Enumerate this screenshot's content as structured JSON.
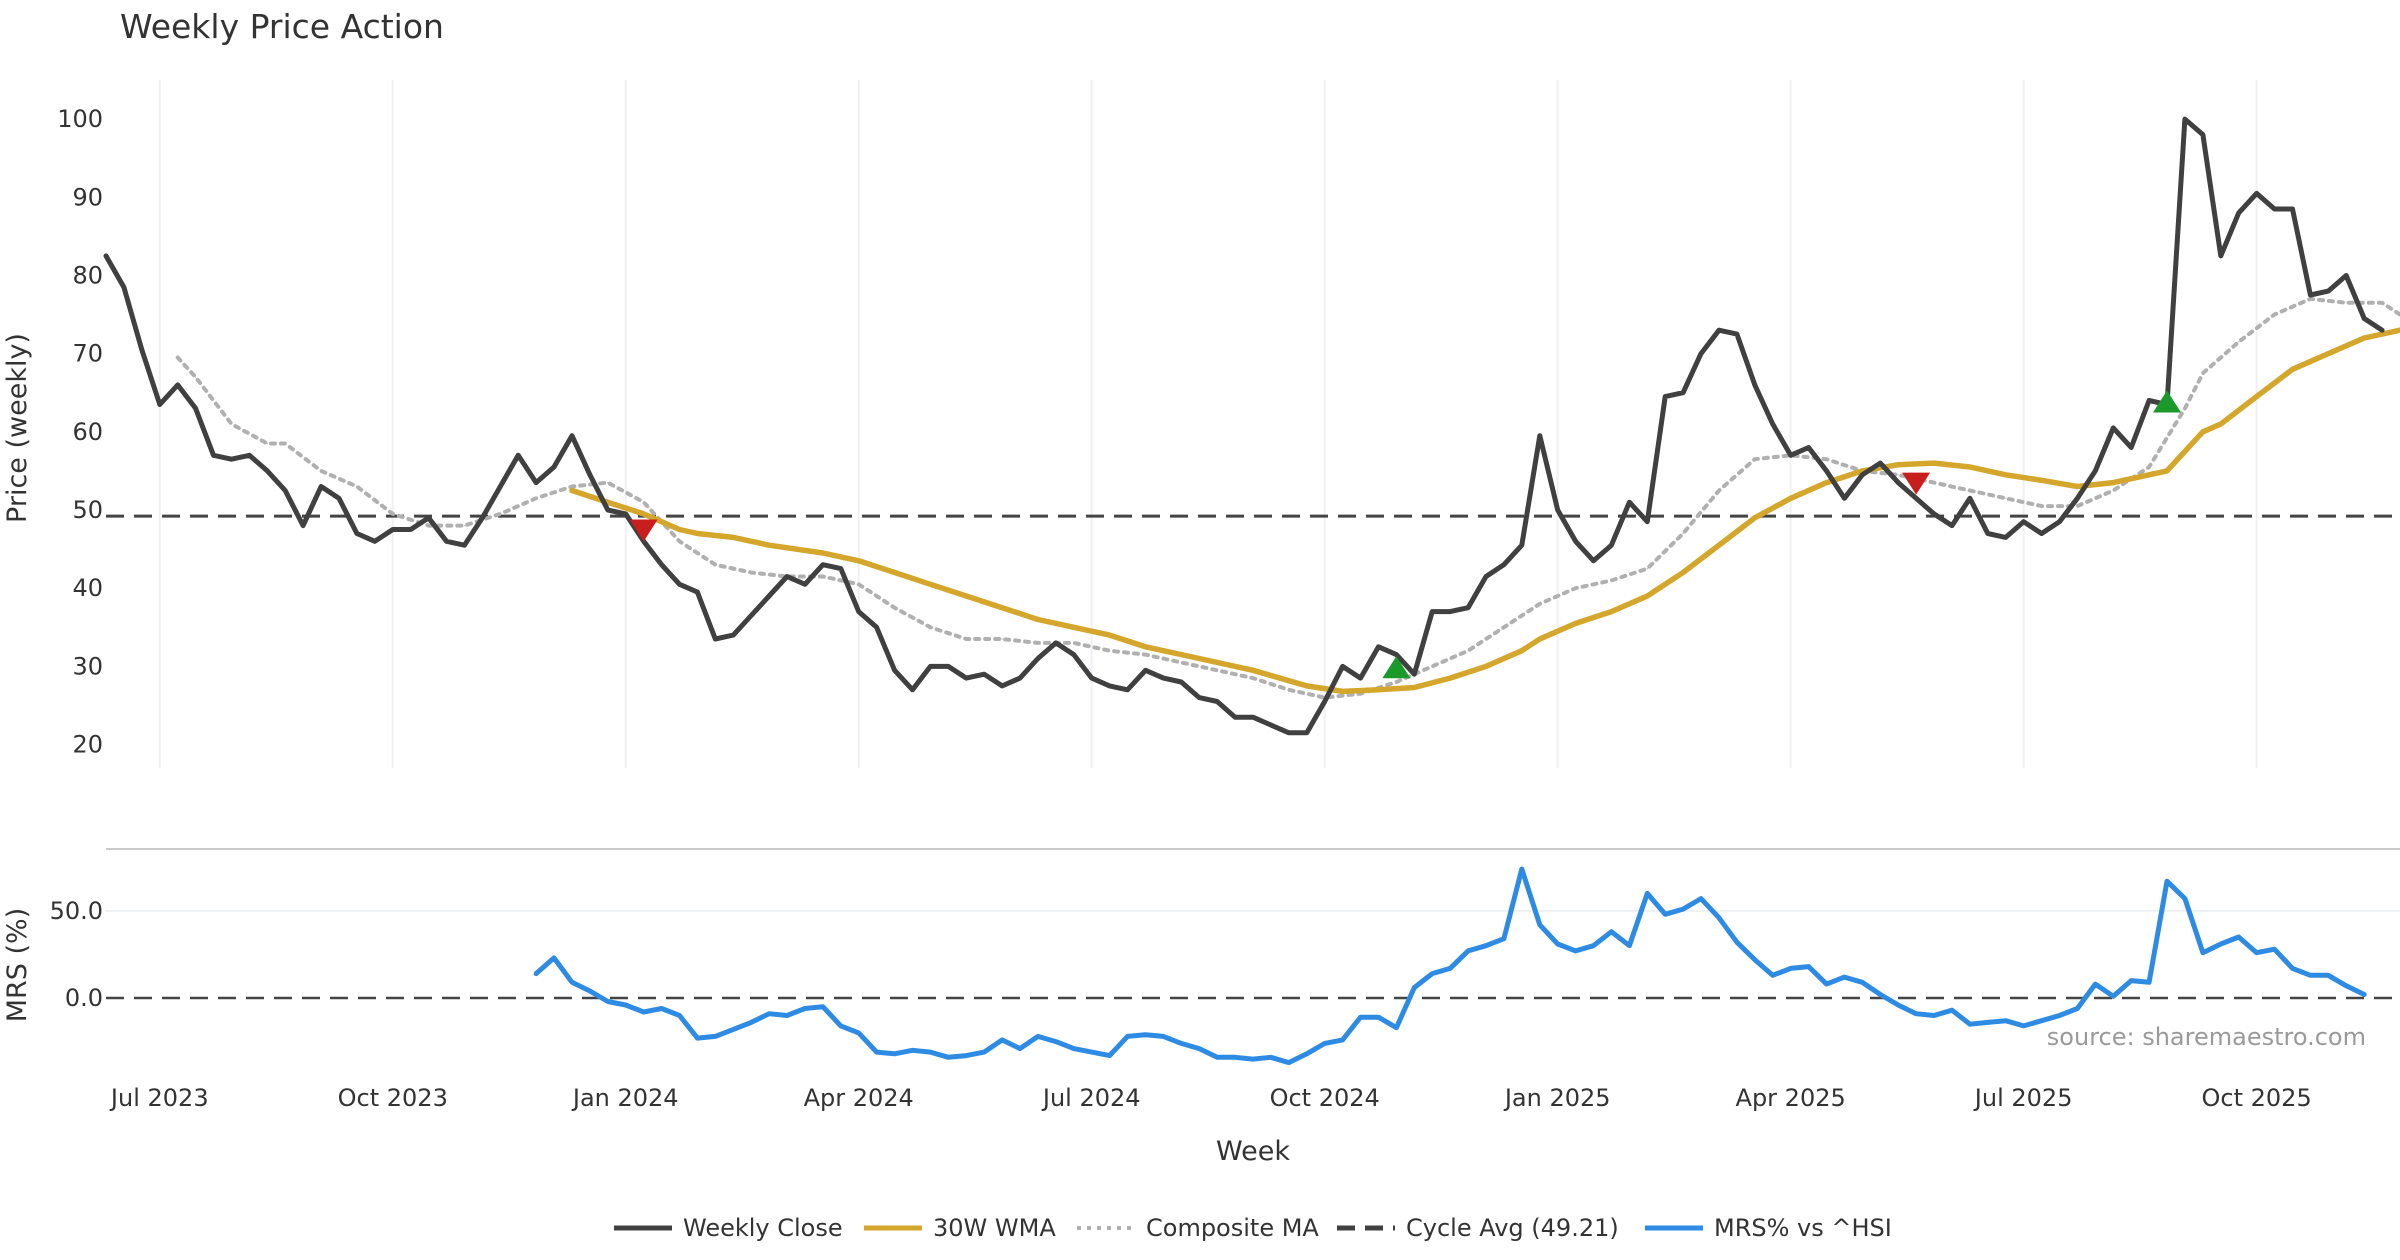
{
  "chart_data": {
    "type": "line",
    "title": "Weekly Price Action",
    "xlabel": "Week",
    "source": "source: sharemaestro.com",
    "x_ticks": [
      "Jul 2023",
      "Oct 2023",
      "Jan 2024",
      "Apr 2024",
      "Jul 2024",
      "Oct 2024",
      "Jan 2025",
      "Apr 2025",
      "Jul 2025",
      "Oct 2025"
    ],
    "price_panel": {
      "ylabel": "Price (weekly)",
      "ylim": [
        17,
        105
      ],
      "yticks": [
        "20",
        "30",
        "40",
        "50",
        "60",
        "70",
        "80",
        "90",
        "100"
      ],
      "cycle_avg": 49.21,
      "weekly_close": [
        [
          0,
          82.5
        ],
        [
          1,
          78.5
        ],
        [
          2,
          70.5
        ],
        [
          3,
          63.5
        ],
        [
          4,
          66
        ],
        [
          5,
          63
        ],
        [
          6,
          57
        ],
        [
          7,
          56.5
        ],
        [
          8,
          57
        ],
        [
          9,
          55
        ],
        [
          10,
          52.5
        ],
        [
          11,
          48
        ],
        [
          12,
          53
        ],
        [
          13,
          51.5
        ],
        [
          14,
          47
        ],
        [
          15,
          46
        ],
        [
          16,
          47.5
        ],
        [
          17,
          47.5
        ],
        [
          18,
          49
        ],
        [
          19,
          46
        ],
        [
          20,
          45.5
        ],
        [
          21,
          49
        ],
        [
          22,
          53
        ],
        [
          23,
          57
        ],
        [
          24,
          53.5
        ],
        [
          25,
          55.5
        ],
        [
          26,
          59.5
        ],
        [
          27,
          54.5
        ],
        [
          28,
          50
        ],
        [
          29,
          49.5
        ],
        [
          30,
          46
        ],
        [
          31,
          43
        ],
        [
          32,
          40.5
        ],
        [
          33,
          39.5
        ],
        [
          34,
          33.5
        ],
        [
          35,
          34
        ],
        [
          36,
          36.5
        ],
        [
          37,
          39
        ],
        [
          38,
          41.5
        ],
        [
          39,
          40.5
        ],
        [
          40,
          43
        ],
        [
          41,
          42.5
        ],
        [
          42,
          37
        ],
        [
          43,
          35
        ],
        [
          44,
          29.5
        ],
        [
          45,
          27
        ],
        [
          46,
          30
        ],
        [
          47,
          30
        ],
        [
          48,
          28.5
        ],
        [
          49,
          29
        ],
        [
          50,
          27.5
        ],
        [
          51,
          28.5
        ],
        [
          52,
          31
        ],
        [
          53,
          33
        ],
        [
          54,
          31.5
        ],
        [
          55,
          28.5
        ],
        [
          56,
          27.5
        ],
        [
          57,
          27
        ],
        [
          58,
          29.5
        ],
        [
          59,
          28.5
        ],
        [
          60,
          28
        ],
        [
          61,
          26
        ],
        [
          62,
          25.5
        ],
        [
          63,
          23.5
        ],
        [
          64,
          23.5
        ],
        [
          65,
          22.5
        ],
        [
          66,
          21.5
        ],
        [
          67,
          21.5
        ],
        [
          68,
          25.5
        ],
        [
          69,
          30
        ],
        [
          70,
          28.5
        ],
        [
          71,
          32.5
        ],
        [
          72,
          31.5
        ],
        [
          73,
          29
        ],
        [
          74,
          37
        ],
        [
          75,
          37
        ],
        [
          76,
          37.5
        ],
        [
          77,
          41.5
        ],
        [
          78,
          43
        ],
        [
          79,
          45.5
        ],
        [
          80,
          59.5
        ],
        [
          81,
          50
        ],
        [
          82,
          46
        ],
        [
          83,
          43.5
        ],
        [
          84,
          45.5
        ],
        [
          85,
          51
        ],
        [
          86,
          48.5
        ],
        [
          87,
          64.5
        ],
        [
          88,
          65
        ],
        [
          89,
          70
        ],
        [
          90,
          73
        ],
        [
          91,
          72.5
        ],
        [
          92,
          66
        ],
        [
          93,
          61
        ],
        [
          94,
          57
        ],
        [
          95,
          58
        ],
        [
          96,
          55
        ],
        [
          97,
          51.5
        ],
        [
          98,
          54.5
        ],
        [
          99,
          56
        ],
        [
          100,
          53.5
        ],
        [
          101,
          51.5
        ],
        [
          102,
          49.5
        ],
        [
          103,
          48
        ],
        [
          104,
          51.5
        ],
        [
          105,
          47
        ],
        [
          106,
          46.5
        ],
        [
          107,
          48.5
        ],
        [
          108,
          47
        ],
        [
          109,
          48.5
        ],
        [
          110,
          51.5
        ],
        [
          111,
          55
        ],
        [
          112,
          60.5
        ],
        [
          113,
          58
        ],
        [
          114,
          64
        ],
        [
          115,
          63.5
        ],
        [
          116,
          100
        ],
        [
          117,
          98
        ],
        [
          118,
          82.5
        ],
        [
          119,
          88
        ],
        [
          120,
          90.5
        ],
        [
          121,
          88.5
        ],
        [
          122,
          88.5
        ],
        [
          123,
          77.5
        ],
        [
          124,
          78
        ],
        [
          125,
          80
        ],
        [
          126,
          74.5
        ],
        [
          127,
          73
        ]
      ],
      "wma_30w": [
        [
          26,
          52.5
        ],
        [
          28,
          51
        ],
        [
          30,
          49.5
        ],
        [
          32,
          47.5
        ],
        [
          33,
          47
        ],
        [
          35,
          46.5
        ],
        [
          37,
          45.5
        ],
        [
          40,
          44.5
        ],
        [
          42,
          43.5
        ],
        [
          44,
          42
        ],
        [
          46,
          40.5
        ],
        [
          48,
          39
        ],
        [
          50,
          37.5
        ],
        [
          52,
          36
        ],
        [
          54,
          35
        ],
        [
          56,
          34
        ],
        [
          58,
          32.5
        ],
        [
          61,
          31
        ],
        [
          64,
          29.5
        ],
        [
          67,
          27.5
        ],
        [
          69,
          26.8
        ],
        [
          71,
          27
        ],
        [
          73,
          27.3
        ],
        [
          75,
          28.5
        ],
        [
          77,
          30
        ],
        [
          79,
          32
        ],
        [
          80,
          33.5
        ],
        [
          82,
          35.5
        ],
        [
          84,
          37
        ],
        [
          86,
          39
        ],
        [
          88,
          42
        ],
        [
          90,
          45.5
        ],
        [
          92,
          49
        ],
        [
          94,
          51.5
        ],
        [
          96,
          53.5
        ],
        [
          98,
          55
        ],
        [
          100,
          55.8
        ],
        [
          102,
          56
        ],
        [
          104,
          55.5
        ],
        [
          106,
          54.5
        ],
        [
          108,
          53.8
        ],
        [
          110,
          53
        ],
        [
          112,
          53.5
        ],
        [
          114,
          54.5
        ],
        [
          115,
          55
        ],
        [
          117,
          60
        ],
        [
          118,
          61
        ],
        [
          120,
          64.5
        ],
        [
          122,
          68
        ],
        [
          124,
          70
        ],
        [
          126,
          72
        ],
        [
          128,
          73
        ]
      ],
      "composite_ma": [
        [
          4,
          69.5
        ],
        [
          5,
          67
        ],
        [
          7,
          61
        ],
        [
          9,
          58.5
        ],
        [
          10,
          58.5
        ],
        [
          12,
          55
        ],
        [
          14,
          53
        ],
        [
          16,
          49.5
        ],
        [
          18,
          48
        ],
        [
          20,
          48
        ],
        [
          22,
          49.5
        ],
        [
          24,
          51.5
        ],
        [
          26,
          53
        ],
        [
          28,
          53.5
        ],
        [
          30,
          51
        ],
        [
          32,
          46
        ],
        [
          34,
          43
        ],
        [
          36,
          42
        ],
        [
          38,
          41.5
        ],
        [
          40,
          41.5
        ],
        [
          42,
          40.5
        ],
        [
          44,
          37.5
        ],
        [
          46,
          35
        ],
        [
          48,
          33.5
        ],
        [
          50,
          33.5
        ],
        [
          52,
          33
        ],
        [
          54,
          33
        ],
        [
          56,
          32
        ],
        [
          58,
          31.5
        ],
        [
          60,
          30.5
        ],
        [
          62,
          29.5
        ],
        [
          64,
          28.5
        ],
        [
          66,
          27
        ],
        [
          68,
          26
        ],
        [
          70,
          26.5
        ],
        [
          72,
          28
        ],
        [
          74,
          30
        ],
        [
          76,
          32
        ],
        [
          78,
          35
        ],
        [
          80,
          38
        ],
        [
          82,
          40
        ],
        [
          84,
          41
        ],
        [
          86,
          42.5
        ],
        [
          88,
          47
        ],
        [
          90,
          52.5
        ],
        [
          92,
          56.5
        ],
        [
          94,
          57
        ],
        [
          96,
          56.5
        ],
        [
          98,
          55
        ],
        [
          100,
          54.5
        ],
        [
          102,
          53.5
        ],
        [
          104,
          52.5
        ],
        [
          106,
          51.5
        ],
        [
          108,
          50.5
        ],
        [
          110,
          50.5
        ],
        [
          112,
          52.5
        ],
        [
          114,
          55.5
        ],
        [
          116,
          63
        ],
        [
          117,
          67.5
        ],
        [
          119,
          71.5
        ],
        [
          121,
          75
        ],
        [
          123,
          77
        ],
        [
          125,
          76.5
        ],
        [
          127,
          76.5
        ],
        [
          128,
          75
        ]
      ],
      "buy_signals": [
        [
          72,
          29.5
        ],
        [
          115,
          63.5
        ]
      ],
      "sell_signals": [
        [
          30,
          47.5
        ],
        [
          101,
          53.5
        ]
      ]
    },
    "mrs_panel": {
      "ylabel": "MRS (%)",
      "ylim": [
        -47,
        82
      ],
      "yticks": [
        "0.0",
        "50.0"
      ],
      "zero_line": 0,
      "mrs_pct": [
        [
          24,
          14
        ],
        [
          25,
          23
        ],
        [
          26,
          9
        ],
        [
          27,
          4
        ],
        [
          28,
          -2
        ],
        [
          29,
          -4
        ],
        [
          30,
          -8
        ],
        [
          31,
          -6
        ],
        [
          32,
          -10
        ],
        [
          33,
          -23
        ],
        [
          34,
          -22
        ],
        [
          35,
          -18
        ],
        [
          36,
          -14
        ],
        [
          37,
          -9
        ],
        [
          38,
          -10
        ],
        [
          39,
          -6
        ],
        [
          40,
          -5
        ],
        [
          41,
          -16
        ],
        [
          42,
          -20
        ],
        [
          43,
          -31
        ],
        [
          44,
          -32
        ],
        [
          45,
          -30
        ],
        [
          46,
          -31
        ],
        [
          47,
          -34
        ],
        [
          48,
          -33
        ],
        [
          49,
          -31
        ],
        [
          50,
          -24
        ],
        [
          51,
          -29
        ],
        [
          52,
          -22
        ],
        [
          53,
          -25
        ],
        [
          54,
          -29
        ],
        [
          55,
          -31
        ],
        [
          56,
          -33
        ],
        [
          57,
          -22
        ],
        [
          58,
          -21
        ],
        [
          59,
          -22
        ],
        [
          60,
          -26
        ],
        [
          61,
          -29
        ],
        [
          62,
          -34
        ],
        [
          63,
          -34
        ],
        [
          64,
          -35
        ],
        [
          65,
          -34
        ],
        [
          66,
          -37
        ],
        [
          67,
          -32
        ],
        [
          68,
          -26
        ],
        [
          69,
          -24
        ],
        [
          70,
          -11
        ],
        [
          71,
          -11
        ],
        [
          72,
          -17
        ],
        [
          73,
          6
        ],
        [
          74,
          14
        ],
        [
          75,
          17
        ],
        [
          76,
          27
        ],
        [
          77,
          30
        ],
        [
          78,
          34
        ],
        [
          79,
          74
        ],
        [
          80,
          42
        ],
        [
          81,
          31
        ],
        [
          82,
          27
        ],
        [
          83,
          30
        ],
        [
          84,
          38
        ],
        [
          85,
          30
        ],
        [
          86,
          60
        ],
        [
          87,
          48
        ],
        [
          88,
          51
        ],
        [
          89,
          57
        ],
        [
          90,
          46
        ],
        [
          91,
          32
        ],
        [
          92,
          22
        ],
        [
          93,
          13
        ],
        [
          94,
          17
        ],
        [
          95,
          18
        ],
        [
          96,
          8
        ],
        [
          97,
          12
        ],
        [
          98,
          9
        ],
        [
          99,
          2
        ],
        [
          100,
          -4
        ],
        [
          101,
          -9
        ],
        [
          102,
          -10
        ],
        [
          103,
          -7
        ],
        [
          104,
          -15
        ],
        [
          105,
          -14
        ],
        [
          106,
          -13
        ],
        [
          107,
          -16
        ],
        [
          108,
          -13
        ],
        [
          109,
          -10
        ],
        [
          110,
          -6
        ],
        [
          111,
          8
        ],
        [
          112,
          1
        ],
        [
          113,
          10
        ],
        [
          114,
          9
        ],
        [
          115,
          67
        ],
        [
          116,
          57
        ],
        [
          117,
          26
        ],
        [
          118,
          31
        ],
        [
          119,
          35
        ],
        [
          120,
          26
        ],
        [
          121,
          28
        ],
        [
          122,
          17
        ],
        [
          123,
          13
        ],
        [
          124,
          13
        ],
        [
          125,
          7
        ],
        [
          126,
          2
        ]
      ]
    },
    "legend": [
      {
        "label": "Weekly Close",
        "color": "#404040",
        "style": "solid"
      },
      {
        "label": "30W WMA",
        "color": "#d4a72c",
        "style": "solid"
      },
      {
        "label": "Composite MA",
        "color": "#b0b0b0",
        "style": "dotted"
      },
      {
        "label": "Cycle Avg (49.21)",
        "color": "#404040",
        "style": "dashed"
      },
      {
        "label": "MRS% vs ^HSI",
        "color": "#2e8be3",
        "style": "solid"
      }
    ],
    "colors": {
      "close": "#404040",
      "wma": "#d4a72c",
      "composite": "#b0b0b0",
      "cycle": "#444444",
      "mrs": "#2e8be3",
      "buy": "#1a9a2a",
      "sell": "#c81e1e",
      "grid": "#eef1f4"
    }
  }
}
